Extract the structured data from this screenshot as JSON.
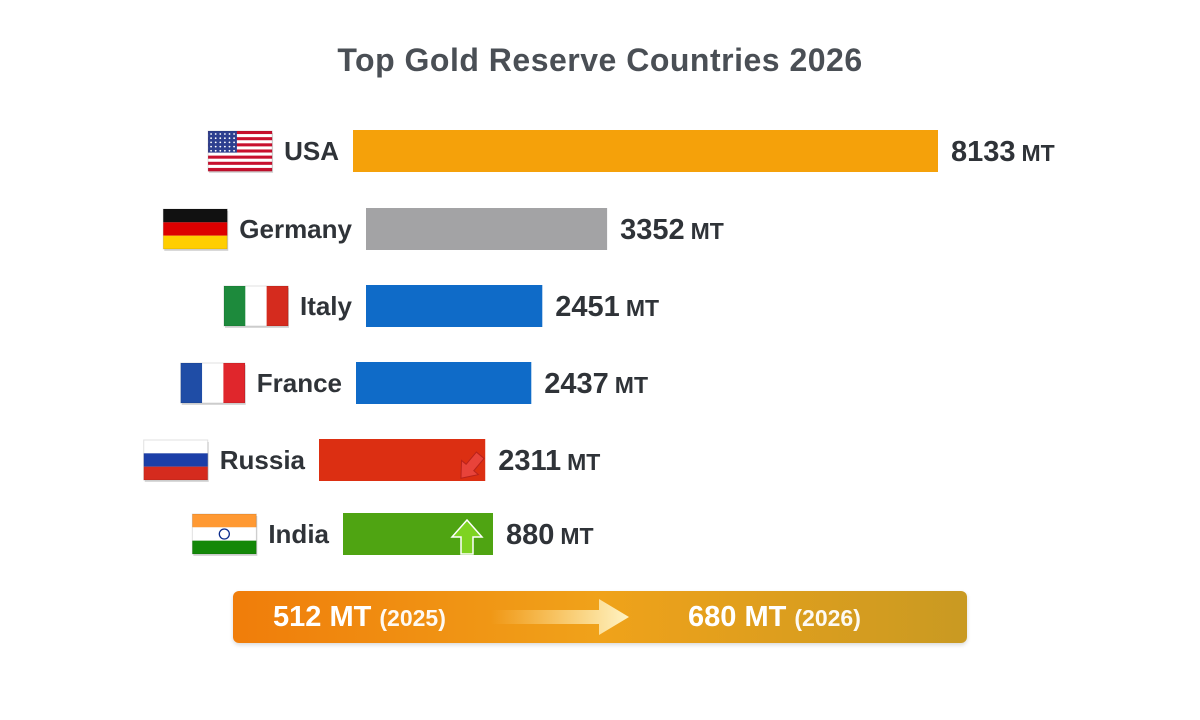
{
  "chart_data": {
    "type": "bar",
    "orientation": "horizontal",
    "title": "Top Gold Reserve Countries 2026",
    "unit": "MT",
    "categories": [
      "USA",
      "Germany",
      "Italy",
      "France",
      "Russia",
      "India"
    ],
    "values": [
      8133,
      3352,
      2451,
      2437,
      2311,
      880
    ],
    "bar_colors": [
      "#f5a10a",
      "#a3a3a5",
      "#0f6bc8",
      "#0f6bc8",
      "#dc2f12",
      "#4fa412"
    ],
    "flags": [
      "usa-flag",
      "germany-flag",
      "italy-flag",
      "france-flag",
      "russia-flag",
      "india-flag"
    ],
    "annotations": [
      {
        "category": "Russia",
        "icon": "down-arrow-icon",
        "color": "#e8433a"
      },
      {
        "category": "India",
        "icon": "up-arrow-icon",
        "color": "#7ed321"
      }
    ],
    "grid": false,
    "legend": "none"
  },
  "banner": {
    "from_value": "512 MT",
    "from_year": "(2025)",
    "to_value": "680 MT",
    "to_year": "(2026)",
    "arrow_icon": "right-arrow-icon"
  }
}
